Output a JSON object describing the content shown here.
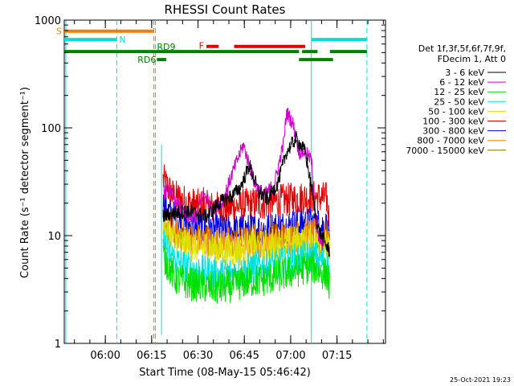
{
  "chart_data": {
    "type": "line",
    "title": "RHESSI Count Rates",
    "xlabel": "Start Time (08-May-15 05:46:42)",
    "ylabel": "Count Rate (s⁻¹ detector segment⁻¹)",
    "x_unit": "minutes after 05:46:42",
    "xlim": [
      0,
      104
    ],
    "ylim": [
      1,
      1000
    ],
    "yscale": "log",
    "x_ticks": [
      {
        "t": 13.3,
        "label": "06:00"
      },
      {
        "t": 28.3,
        "label": "06:15"
      },
      {
        "t": 43.3,
        "label": "06:30"
      },
      {
        "t": 58.3,
        "label": "06:45"
      },
      {
        "t": 73.3,
        "label": "07:00"
      },
      {
        "t": 88.3,
        "label": "07:15"
      }
    ],
    "y_ticks": [
      {
        "v": 1,
        "label": "1"
      },
      {
        "v": 10,
        "label": "10"
      },
      {
        "v": 100,
        "label": "100"
      },
      {
        "v": 1000,
        "label": "1000"
      }
    ],
    "legend_header": [
      "Det 1f,3f,5f,6f,7f,9f,",
      "FDecim 1, Att 0"
    ],
    "series": [
      {
        "name": "3 - 6 keV",
        "color": "#000000",
        "noise": 1.0,
        "x": [
          32,
          35,
          40,
          43,
          46,
          50,
          54,
          57,
          60,
          63,
          66,
          69,
          72,
          75,
          78,
          80,
          82,
          84,
          86
        ],
        "values": [
          15,
          16,
          17,
          16,
          15,
          20,
          23,
          28,
          45,
          25,
          22,
          30,
          60,
          80,
          60,
          28,
          12,
          9,
          7
        ]
      },
      {
        "name": "6 - 12 keV",
        "color": "#d000d0",
        "noise": 1.0,
        "x": [
          32,
          34,
          36,
          40,
          43,
          45,
          48,
          51,
          55,
          58,
          60,
          62,
          65,
          68,
          71,
          72,
          74,
          76,
          78,
          80,
          82,
          84
        ],
        "values": [
          25,
          27,
          20,
          15,
          15,
          25,
          18,
          20,
          42,
          70,
          44,
          28,
          24,
          30,
          72,
          140,
          110,
          60,
          60,
          50,
          10,
          8
        ]
      },
      {
        "name": "12 - 25 keV",
        "color": "#00e000",
        "noise": 1.0,
        "x": [
          32,
          36,
          40,
          45,
          50,
          55,
          60,
          65,
          70,
          75,
          80,
          83,
          85,
          86
        ],
        "values": [
          6.5,
          4.0,
          3.6,
          3.4,
          3.2,
          3.5,
          3.8,
          3.9,
          4.3,
          4.7,
          5.2,
          4.6,
          4.4,
          3.2
        ]
      },
      {
        "name": "25 - 50 keV",
        "color": "#00e0e0",
        "noise": 1.0,
        "x": [
          32,
          36,
          40,
          45,
          50,
          55,
          60,
          65,
          70,
          75,
          80,
          83,
          85,
          86
        ],
        "values": [
          8.5,
          5.8,
          5.0,
          4.6,
          4.4,
          4.5,
          4.9,
          5.3,
          5.5,
          6.0,
          6.5,
          6.0,
          5.4,
          4.6
        ]
      },
      {
        "name": "50 - 100 keV",
        "color": "#e0e000",
        "noise": 1.0,
        "x": [
          32,
          36,
          40,
          45,
          50,
          55,
          60,
          65,
          70,
          75,
          80,
          85,
          86
        ],
        "values": [
          11,
          9.0,
          8.3,
          7.8,
          7.5,
          7.3,
          7.6,
          8.0,
          8.3,
          8.6,
          8.8,
          8.0,
          6.5
        ]
      },
      {
        "name": "100 - 300 keV",
        "color": "#e00000",
        "noise": 1.0,
        "x": [
          32,
          35,
          40,
          45,
          50,
          55,
          60,
          65,
          70,
          75,
          80,
          85,
          86
        ],
        "values": [
          33,
          24,
          20,
          18.5,
          18,
          18.5,
          19.5,
          20,
          21,
          22,
          23,
          22,
          12
        ]
      },
      {
        "name": "300 - 800 keV",
        "color": "#0000e0",
        "noise": 1.0,
        "x": [
          32,
          36,
          40,
          45,
          50,
          55,
          60,
          65,
          70,
          75,
          80,
          85,
          86
        ],
        "values": [
          19,
          14,
          12.5,
          11.5,
          11,
          11,
          11.2,
          11.5,
          12,
          12.5,
          13,
          12,
          7
        ]
      },
      {
        "name": "800 - 7000 keV",
        "color": "#f08000",
        "noise": 1.0,
        "x": [
          32,
          36,
          40,
          45,
          50,
          55,
          60,
          65,
          70,
          75,
          80,
          85,
          86
        ],
        "values": [
          13,
          10.5,
          9.6,
          9.0,
          8.6,
          8.4,
          8.7,
          9.1,
          9.5,
          9.9,
          10.2,
          9.6,
          7.5
        ]
      },
      {
        "name": "7000 - 15000 keV",
        "color": "#8a6a00",
        "noise": 0.0,
        "x": [],
        "values": []
      }
    ],
    "spikes": [
      {
        "x": 31.5,
        "values": [
          1.2,
          70
        ],
        "color": "#00e0e0"
      }
    ],
    "state_bars": [
      {
        "label": "S",
        "color": "#f08000",
        "y_value": 790,
        "segments": [
          [
            0,
            29
          ]
        ]
      },
      {
        "label": "N",
        "color": "#00e0e0",
        "y_value": 660,
        "segments": [
          [
            0,
            17
          ],
          [
            80,
            98
          ]
        ]
      },
      {
        "label": "F",
        "color": "#e00000",
        "y_value": 570,
        "segments": [
          [
            46,
            50
          ],
          [
            55,
            78
          ]
        ]
      },
      {
        "label": "RD9",
        "color": "#008000",
        "y_value": 510,
        "segments": [
          [
            0,
            76
          ],
          [
            77,
            82
          ],
          [
            86,
            98
          ]
        ]
      },
      {
        "label": "RD6",
        "color": "#008000",
        "y_value": 430,
        "segments": [
          [
            30,
            33
          ],
          [
            76,
            87
          ]
        ]
      }
    ],
    "vlines": [
      {
        "t": 0.5,
        "color": "#00e0e0",
        "style": "solid"
      },
      {
        "t": 17.0,
        "color": "#00e0e0",
        "style": "dashed"
      },
      {
        "t": 29.0,
        "color": "#f08000",
        "style": "dashed"
      },
      {
        "t": 29.5,
        "color": "#f08000",
        "style": "dashed"
      },
      {
        "t": 80.0,
        "color": "#00e0e0",
        "style": "solid"
      },
      {
        "t": 98.0,
        "color": "#00e0e0",
        "style": "dashed"
      }
    ]
  },
  "footer": {
    "timestamp": "25-Oct-2021 19:23"
  }
}
